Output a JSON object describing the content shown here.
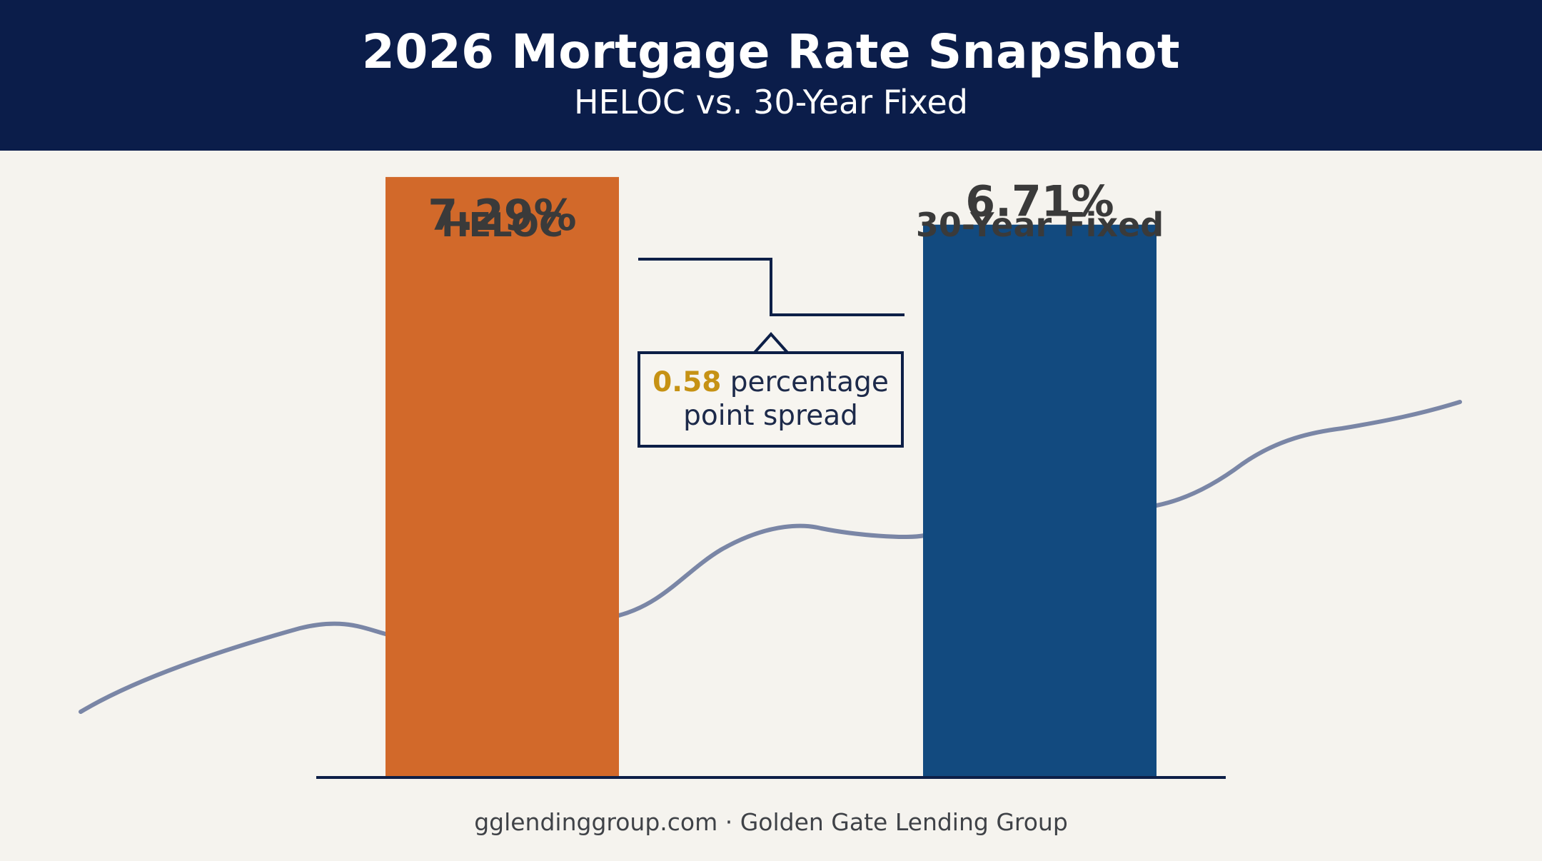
{
  "header": {
    "title": "2026 Mortgage Rate Snapshot",
    "subtitle": "HELOC vs. 30-Year Fixed"
  },
  "chart_data": {
    "type": "bar",
    "categories": [
      "HELOC",
      "30-Year Fixed"
    ],
    "values": [
      7.29,
      6.71
    ],
    "value_labels": [
      "7.29%",
      "6.71%"
    ],
    "colors": [
      "#d2692a",
      "#124a7f"
    ],
    "title": "2026 Mortgage Rate Snapshot",
    "subtitle": "HELOC vs. 30-Year Fixed",
    "xlabel": "",
    "ylabel": "",
    "grid": false,
    "legend": "none",
    "annotations": [
      {
        "value": "0.58",
        "text": "percentage",
        "text2": "point spread",
        "highlight_color": "#c69214"
      }
    ],
    "background_line_color": "#7a86a6"
  },
  "footer": {
    "text": "gglendinggroup.com · Golden Gate Lending Group"
  }
}
